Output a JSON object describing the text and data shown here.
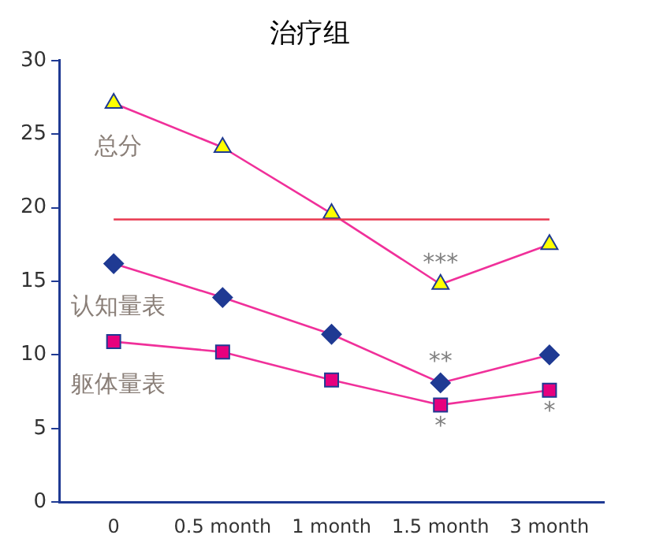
{
  "chart_data": {
    "type": "line",
    "title": "治疗组",
    "categories": [
      "0",
      "0.5 month",
      "1 month",
      "1.5 month",
      "3 month"
    ],
    "series": [
      {
        "name": "总分",
        "color": "#ffff00",
        "marker": "triangle",
        "values": [
          27.1,
          24.1,
          19.6,
          14.8,
          17.5
        ]
      },
      {
        "name": "认知量表",
        "color": "#1f3a93",
        "marker": "diamond",
        "values": [
          16.2,
          13.9,
          11.4,
          8.1,
          10.0
        ]
      },
      {
        "name": "躯体量表",
        "color": "#e6007e",
        "marker": "square",
        "values": [
          10.9,
          10.2,
          8.3,
          6.6,
          7.6
        ]
      }
    ],
    "ylim": [
      0,
      30
    ],
    "yticks": [
      0,
      5,
      10,
      15,
      20,
      25,
      30
    ],
    "ref_lines": [
      {
        "axis": "y",
        "value": 19.2,
        "color": "#e8384f"
      }
    ],
    "annotations": [
      {
        "text": "***",
        "x": "1.5 month",
        "y": 14.8
      },
      {
        "text": "**",
        "x": "1.5 month",
        "y": 8.1
      },
      {
        "text": "*",
        "x": "1.5 month",
        "y": 6.6
      },
      {
        "text": "*",
        "x": "3 month",
        "y": 7.6
      }
    ],
    "grid": false,
    "legend": false
  }
}
